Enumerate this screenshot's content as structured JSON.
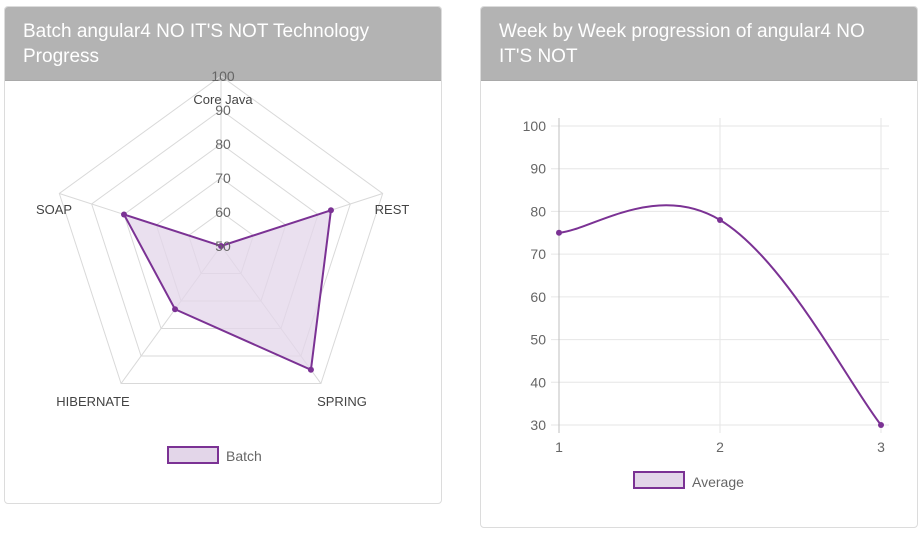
{
  "left_panel": {
    "title": "Batch angular4 NO IT'S NOT Technology Progress"
  },
  "right_panel": {
    "title": "Week by Week progression of angular4 NO IT'S NOT"
  },
  "colors": {
    "series_stroke": "#7b3294",
    "series_fill": "#e3d6e9",
    "grid": "#d9d9d9",
    "axis_text": "#666666",
    "header_bg": "#b3b3b3"
  },
  "chart_data": [
    {
      "type": "radar",
      "title": "Batch angular4 NO IT'S NOT Technology Progress",
      "categories": [
        "Core Java",
        "REST",
        "SPRING",
        "HIBERNATE",
        "SOAP"
      ],
      "r_ticks": [
        "50",
        "60",
        "70",
        "80",
        "90",
        "100"
      ],
      "rlim": [
        50,
        100
      ],
      "series": [
        {
          "name": "Batch",
          "values": [
            50,
            84,
            95,
            73,
            80
          ]
        }
      ],
      "legend": "bottom"
    },
    {
      "type": "line",
      "title": "Week by Week progression of angular4 NO IT'S NOT",
      "x": [
        "1",
        "2",
        "3"
      ],
      "y_ticks": [
        "30",
        "40",
        "50",
        "60",
        "70",
        "80",
        "90",
        "100"
      ],
      "ylim": [
        30,
        100
      ],
      "series": [
        {
          "name": "Average",
          "values": [
            75,
            78,
            30
          ]
        }
      ],
      "legend": "bottom"
    }
  ]
}
